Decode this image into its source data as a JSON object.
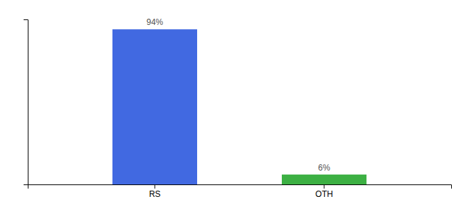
{
  "chart_data": {
    "type": "bar",
    "categories": [
      "RS",
      "OTH"
    ],
    "values": [
      94,
      6
    ],
    "value_labels": [
      "94%",
      "6%"
    ],
    "colors": [
      "#4169e1",
      "#3cb043"
    ],
    "ylim": [
      0,
      100
    ],
    "yticks": [],
    "data_labels": true,
    "tick_labels": "x"
  }
}
